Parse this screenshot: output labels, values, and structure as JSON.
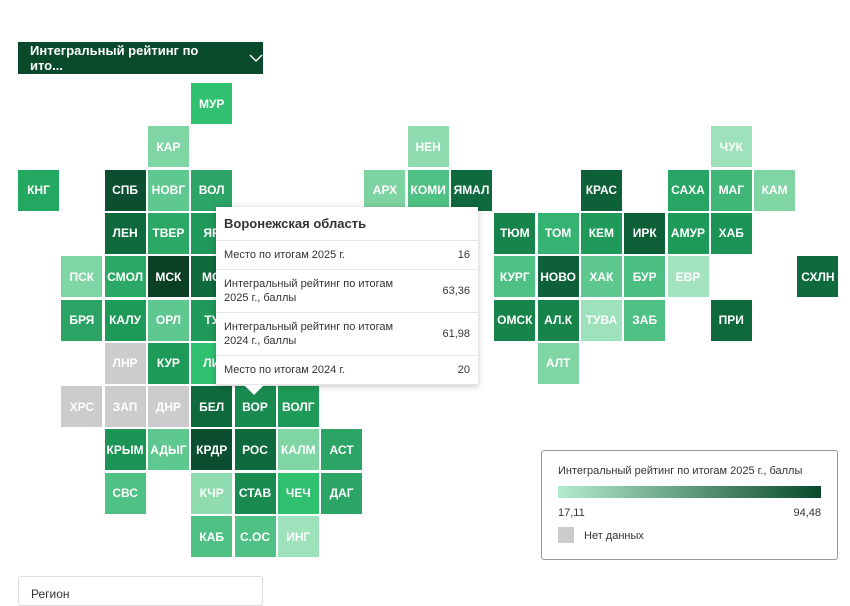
{
  "dropdown": "Интегральный рейтинг по ито...",
  "tiles": [
    {
      "label": "МУР",
      "col": 4,
      "row": 0,
      "color": "#2fc070"
    },
    {
      "label": "КАР",
      "col": 3,
      "row": 1,
      "color": "#7fd6a4"
    },
    {
      "label": "НЕН",
      "col": 9,
      "row": 1,
      "color": "#8edcb0"
    },
    {
      "label": "ЧУК",
      "col": 16,
      "row": 1,
      "color": "#9de2bb"
    },
    {
      "label": "КНГ",
      "col": 0,
      "row": 2,
      "color": "#23a862"
    },
    {
      "label": "СПБ",
      "col": 2,
      "row": 2,
      "color": "#0b4f30"
    },
    {
      "label": "НОВГ",
      "col": 3,
      "row": 2,
      "color": "#5fc890"
    },
    {
      "label": "ВОЛ",
      "col": 4,
      "row": 2,
      "color": "#2ca466"
    },
    {
      "label": "АРХ",
      "col": 8,
      "row": 2,
      "color": "#7dd3a2"
    },
    {
      "label": "КОМИ",
      "col": 9,
      "row": 2,
      "color": "#4fc184"
    },
    {
      "label": "ЯМАЛ",
      "col": 10,
      "row": 2,
      "color": "#0f6b3e"
    },
    {
      "label": "КРАС",
      "col": 13,
      "row": 2,
      "color": "#0d6038"
    },
    {
      "label": "САХА",
      "col": 15,
      "row": 2,
      "color": "#27a564"
    },
    {
      "label": "МАГ",
      "col": 16,
      "row": 2,
      "color": "#40b677"
    },
    {
      "label": "КАМ",
      "col": 17,
      "row": 2,
      "color": "#7fd6a4"
    },
    {
      "label": "ЛЕН",
      "col": 2,
      "row": 3,
      "color": "#0e6a3d"
    },
    {
      "label": "ТВЕР",
      "col": 3,
      "row": 3,
      "color": "#2ba866"
    },
    {
      "label": "ЯР",
      "col": 4,
      "row": 3,
      "color": "#1f9a5a"
    },
    {
      "label": "ТЮМ",
      "col": 11,
      "row": 3,
      "color": "#17844c"
    },
    {
      "label": "ТОМ",
      "col": 12,
      "row": 3,
      "color": "#35b372"
    },
    {
      "label": "КЕМ",
      "col": 13,
      "row": 3,
      "color": "#1f9a5a"
    },
    {
      "label": "ИРК",
      "col": 14,
      "row": 3,
      "color": "#0d5f38"
    },
    {
      "label": "АМУР",
      "col": 15,
      "row": 3,
      "color": "#1e9a58"
    },
    {
      "label": "ХАБ",
      "col": 16,
      "row": 3,
      "color": "#1c9456"
    },
    {
      "label": "ПСК",
      "col": 1,
      "row": 4,
      "color": "#7fd6a4"
    },
    {
      "label": "СМОЛ",
      "col": 2,
      "row": 4,
      "color": "#2ba866"
    },
    {
      "label": "МСК",
      "col": 3,
      "row": 4,
      "color": "#0a3f26"
    },
    {
      "label": "МО",
      "col": 4,
      "row": 4,
      "color": "#0e6a3d"
    },
    {
      "label": "КУРГ",
      "col": 11,
      "row": 4,
      "color": "#4fc184"
    },
    {
      "label": "НОВО",
      "col": 12,
      "row": 4,
      "color": "#0d6038"
    },
    {
      "label": "ХАК",
      "col": 13,
      "row": 4,
      "color": "#5fc890"
    },
    {
      "label": "БУР",
      "col": 14,
      "row": 4,
      "color": "#4cbf82"
    },
    {
      "label": "ЕВР",
      "col": 15,
      "row": 4,
      "color": "#a3e3bf"
    },
    {
      "label": "СХЛН",
      "col": 18,
      "row": 4,
      "color": "#0f6b3e"
    },
    {
      "label": "БРЯ",
      "col": 1,
      "row": 5,
      "color": "#2ca466"
    },
    {
      "label": "КАЛУ",
      "col": 2,
      "row": 5,
      "color": "#1e9a58"
    },
    {
      "label": "ОРЛ",
      "col": 3,
      "row": 5,
      "color": "#5fc890"
    },
    {
      "label": "ТУ",
      "col": 4,
      "row": 5,
      "color": "#1f9a5a"
    },
    {
      "label": "ОМСК",
      "col": 11,
      "row": 5,
      "color": "#17844c"
    },
    {
      "label": "АЛ.К",
      "col": 12,
      "row": 5,
      "color": "#17844c"
    },
    {
      "label": "ТУВА",
      "col": 13,
      "row": 5,
      "color": "#9de2bb"
    },
    {
      "label": "ЗАБ",
      "col": 14,
      "row": 5,
      "color": "#4fc184"
    },
    {
      "label": "ПРИ",
      "col": 16,
      "row": 5,
      "color": "#0e6a3d"
    },
    {
      "label": "ЛНР",
      "col": 2,
      "row": 6,
      "color": "#cccccc"
    },
    {
      "label": "КУР",
      "col": 3,
      "row": 6,
      "color": "#1e9a58"
    },
    {
      "label": "ЛИ",
      "col": 4,
      "row": 6,
      "color": "#2fc070"
    },
    {
      "label": "АЛТ",
      "col": 12,
      "row": 6,
      "color": "#7fd6a4"
    },
    {
      "label": "ХРС",
      "col": 1,
      "row": 7,
      "color": "#cccccc"
    },
    {
      "label": "ЗАП",
      "col": 2,
      "row": 7,
      "color": "#cccccc"
    },
    {
      "label": "ДНР",
      "col": 3,
      "row": 7,
      "color": "#cccccc"
    },
    {
      "label": "БЕЛ",
      "col": 4,
      "row": 7,
      "color": "#0e6a3d"
    },
    {
      "label": "ВОР",
      "col": 5,
      "row": 7,
      "color": "#1a8b50"
    },
    {
      "label": "ВОЛГ",
      "col": 6,
      "row": 7,
      "color": "#1e9a58"
    },
    {
      "label": "КРЫМ",
      "col": 2,
      "row": 8,
      "color": "#1c9456"
    },
    {
      "label": "АДЫГ",
      "col": 3,
      "row": 8,
      "color": "#5fc890"
    },
    {
      "label": "КРДР",
      "col": 4,
      "row": 8,
      "color": "#0b4f30"
    },
    {
      "label": "РОС",
      "col": 5,
      "row": 8,
      "color": "#0e6a3d"
    },
    {
      "label": "КАЛМ",
      "col": 6,
      "row": 8,
      "color": "#7fd6a4"
    },
    {
      "label": "АСТ",
      "col": 7,
      "row": 8,
      "color": "#2ca466"
    },
    {
      "label": "СВС",
      "col": 2,
      "row": 9,
      "color": "#4fc184"
    },
    {
      "label": "КЧР",
      "col": 4,
      "row": 9,
      "color": "#8edcb0"
    },
    {
      "label": "СТАВ",
      "col": 5,
      "row": 9,
      "color": "#1a8b50"
    },
    {
      "label": "ЧЕЧ",
      "col": 6,
      "row": 9,
      "color": "#2fc070"
    },
    {
      "label": "ДАГ",
      "col": 7,
      "row": 9,
      "color": "#2ca466"
    },
    {
      "label": "КАБ",
      "col": 4,
      "row": 10,
      "color": "#4fc184"
    },
    {
      "label": "С.ОС",
      "col": 5,
      "row": 10,
      "color": "#4fc184"
    },
    {
      "label": "ИНГ",
      "col": 6,
      "row": 10,
      "color": "#9de2bb"
    }
  ],
  "tooltip": {
    "title": "Воронежская область",
    "rows": [
      {
        "label": "Место по итогам 2025 г.",
        "value": "16"
      },
      {
        "label": "Интегральный рейтинг по итогам 2025 г., баллы",
        "value": "63,36"
      },
      {
        "label": "Интегральный рейтинг по итогам 2024 г., баллы",
        "value": "61,98"
      },
      {
        "label": "Место по итогам 2024 г.",
        "value": "20"
      }
    ]
  },
  "legend": {
    "title": "Интегральный рейтинг по итогам 2025 г., баллы",
    "min": "17,11",
    "max": "94,48",
    "no_data": "Нет данных"
  },
  "region_select": "Регион"
}
